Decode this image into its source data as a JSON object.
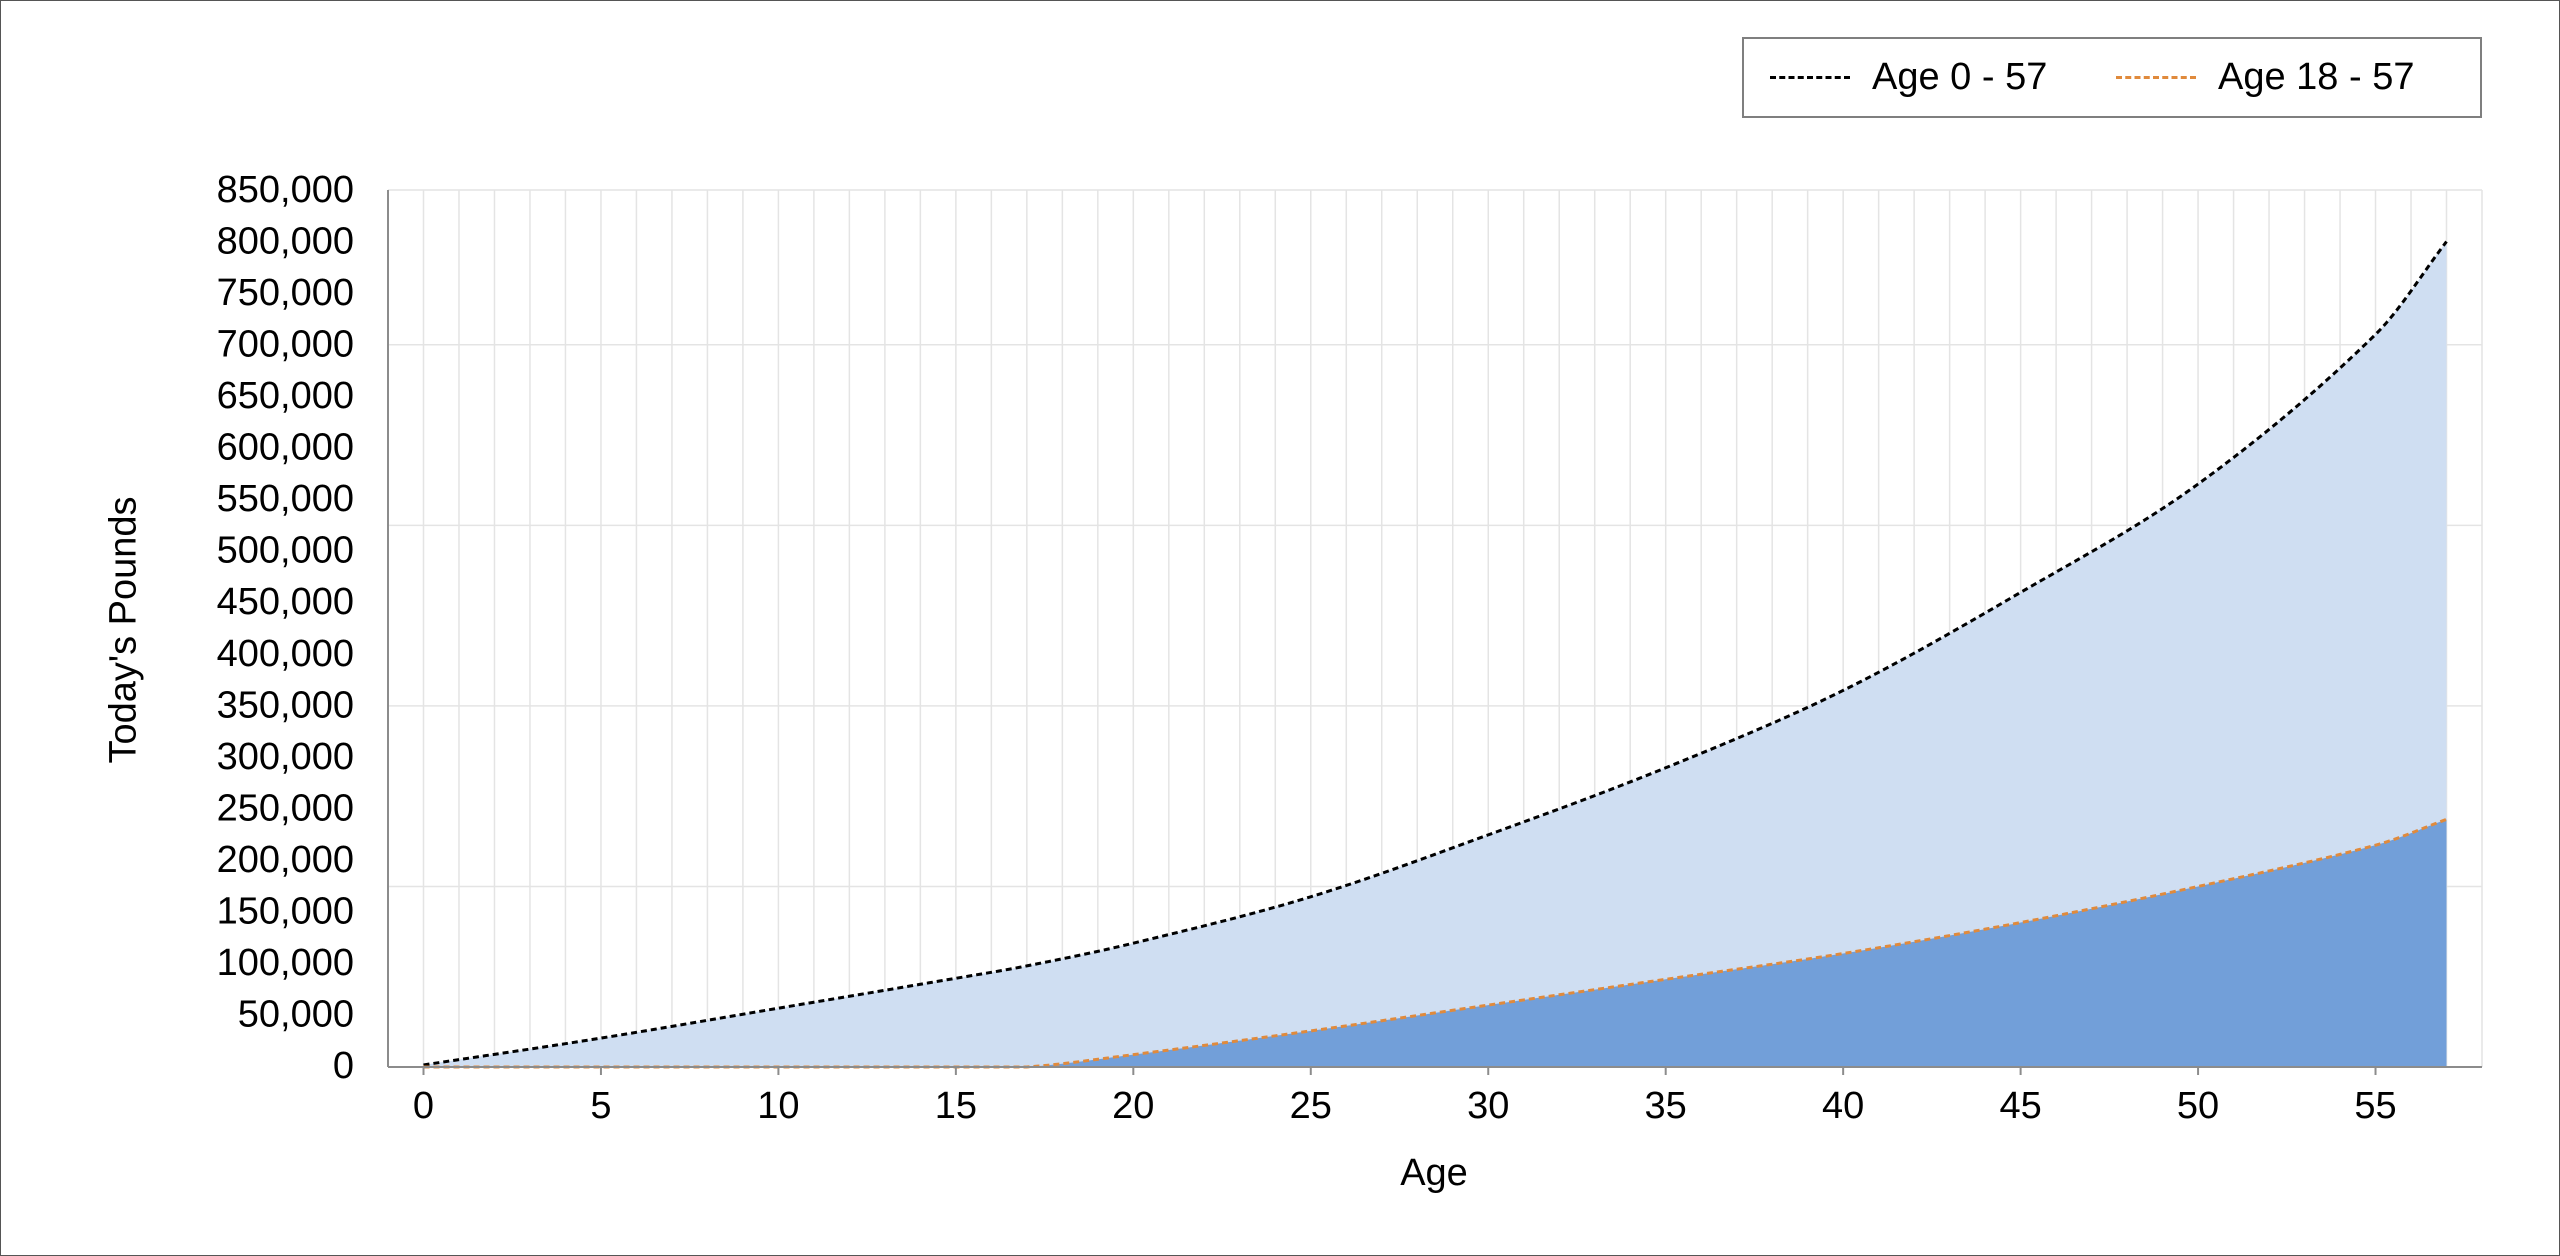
{
  "chart_data": {
    "type": "area",
    "title": "",
    "xlabel": "Age",
    "ylabel": "Today's Pounds",
    "xlim": [
      -1,
      58
    ],
    "ylim": [
      0,
      850000
    ],
    "x_ticks": [
      "0",
      "5",
      "10",
      "15",
      "20",
      "25",
      "30",
      "35",
      "40",
      "45",
      "50",
      "55"
    ],
    "y_ticks": [
      "0",
      "50,000",
      "100,000",
      "150,000",
      "200,000",
      "250,000",
      "300,000",
      "350,000",
      "400,000",
      "450,000",
      "500,000",
      "550,000",
      "600,000",
      "650,000",
      "700,000",
      "750,000",
      "800,000",
      "850,000"
    ],
    "grid": true,
    "legend_position": "top-right",
    "series": [
      {
        "name": "Age 0 - 57",
        "line_color": "#000000",
        "fill_color": "#cfdef2",
        "line_style": "dashed",
        "x": [
          0,
          5,
          10,
          15,
          17,
          20,
          25,
          30,
          35,
          40,
          45,
          50,
          55,
          57
        ],
        "values": [
          2000,
          28000,
          57000,
          86000,
          98000,
          120000,
          165000,
          225000,
          290000,
          365000,
          460000,
          565000,
          710000,
          800000
        ]
      },
      {
        "name": "Age 18 - 57",
        "line_color": "#e08a3c",
        "fill_color": "#729fd9",
        "line_style": "dashed",
        "x": [
          0,
          5,
          10,
          15,
          17,
          20,
          25,
          30,
          35,
          40,
          45,
          50,
          55,
          57
        ],
        "values": [
          0,
          0,
          0,
          0,
          0,
          12000,
          35000,
          60000,
          85000,
          110000,
          140000,
          175000,
          215000,
          240000
        ]
      }
    ]
  }
}
